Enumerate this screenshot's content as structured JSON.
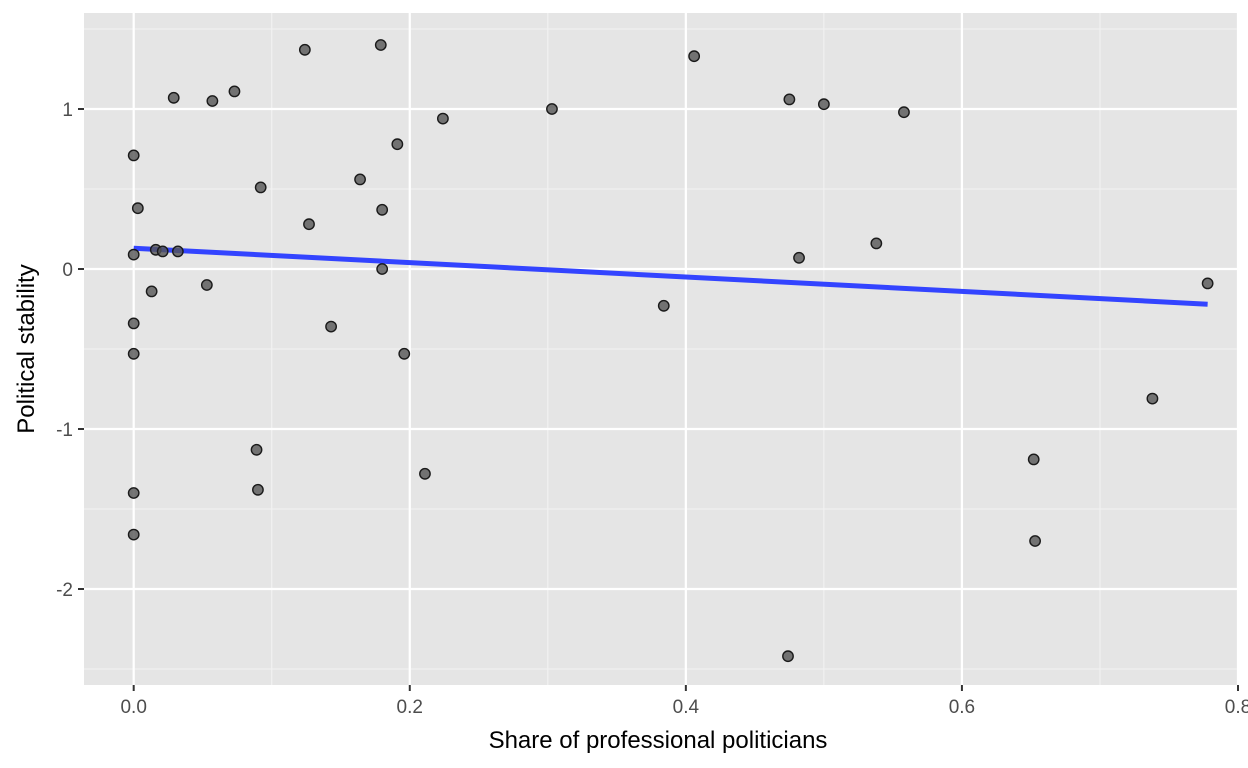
{
  "chart_data": {
    "type": "scatter",
    "title": "",
    "xlabel": "Share of professional politicians",
    "ylabel": "Political stability",
    "xlim": [
      -0.036,
      0.8
    ],
    "ylim": [
      -2.6,
      1.6
    ],
    "x_ticks": [
      0.0,
      0.2,
      0.4,
      0.6,
      0.8
    ],
    "x_tick_labels": [
      "0.0",
      "0.2",
      "0.4",
      "0.6",
      "0.8"
    ],
    "y_ticks": [
      -2,
      -1,
      0,
      1
    ],
    "y_tick_labels": [
      "-2",
      "-1",
      "0",
      "1"
    ],
    "grid": true,
    "legend": "none",
    "colors": {
      "panel_background": "#e5e5e5",
      "grid_major": "#ffffff",
      "grid_minor": "#f2f2f2",
      "point_fill": "#555555",
      "point_stroke": "#1a1a1a",
      "trend_line": "#3344ff"
    },
    "series": [
      {
        "type": "points",
        "points": [
          {
            "x": 0.0,
            "y": 0.71
          },
          {
            "x": 0.003,
            "y": 0.38
          },
          {
            "x": 0.0,
            "y": 0.09
          },
          {
            "x": 0.0,
            "y": -0.34
          },
          {
            "x": 0.0,
            "y": -0.53
          },
          {
            "x": 0.0,
            "y": -1.4
          },
          {
            "x": 0.0,
            "y": -1.66
          },
          {
            "x": 0.013,
            "y": -0.14
          },
          {
            "x": 0.016,
            "y": 0.12
          },
          {
            "x": 0.021,
            "y": 0.11
          },
          {
            "x": 0.029,
            "y": 1.07
          },
          {
            "x": 0.032,
            "y": 0.11
          },
          {
            "x": 0.053,
            "y": -0.1
          },
          {
            "x": 0.057,
            "y": 1.05
          },
          {
            "x": 0.073,
            "y": 1.11
          },
          {
            "x": 0.089,
            "y": -1.13
          },
          {
            "x": 0.09,
            "y": -1.38
          },
          {
            "x": 0.092,
            "y": 0.51
          },
          {
            "x": 0.124,
            "y": 1.37
          },
          {
            "x": 0.127,
            "y": 0.28
          },
          {
            "x": 0.143,
            "y": -0.36
          },
          {
            "x": 0.164,
            "y": 0.56
          },
          {
            "x": 0.179,
            "y": 1.4
          },
          {
            "x": 0.18,
            "y": 0.37
          },
          {
            "x": 0.18,
            "y": 0.0
          },
          {
            "x": 0.191,
            "y": 0.78
          },
          {
            "x": 0.196,
            "y": -0.53
          },
          {
            "x": 0.211,
            "y": -1.28
          },
          {
            "x": 0.224,
            "y": 0.94
          },
          {
            "x": 0.303,
            "y": 1.0
          },
          {
            "x": 0.384,
            "y": -0.23
          },
          {
            "x": 0.406,
            "y": 1.33
          },
          {
            "x": 0.474,
            "y": -2.42
          },
          {
            "x": 0.475,
            "y": 1.06
          },
          {
            "x": 0.482,
            "y": 0.07
          },
          {
            "x": 0.5,
            "y": 1.03
          },
          {
            "x": 0.538,
            "y": 0.16
          },
          {
            "x": 0.558,
            "y": 0.98
          },
          {
            "x": 0.652,
            "y": -1.19
          },
          {
            "x": 0.653,
            "y": -1.7
          },
          {
            "x": 0.738,
            "y": -0.81
          },
          {
            "x": 0.778,
            "y": -0.09
          }
        ]
      },
      {
        "type": "trend_line",
        "points": [
          {
            "x": 0.0,
            "y": 0.13
          },
          {
            "x": 0.778,
            "y": -0.22
          }
        ]
      }
    ]
  }
}
